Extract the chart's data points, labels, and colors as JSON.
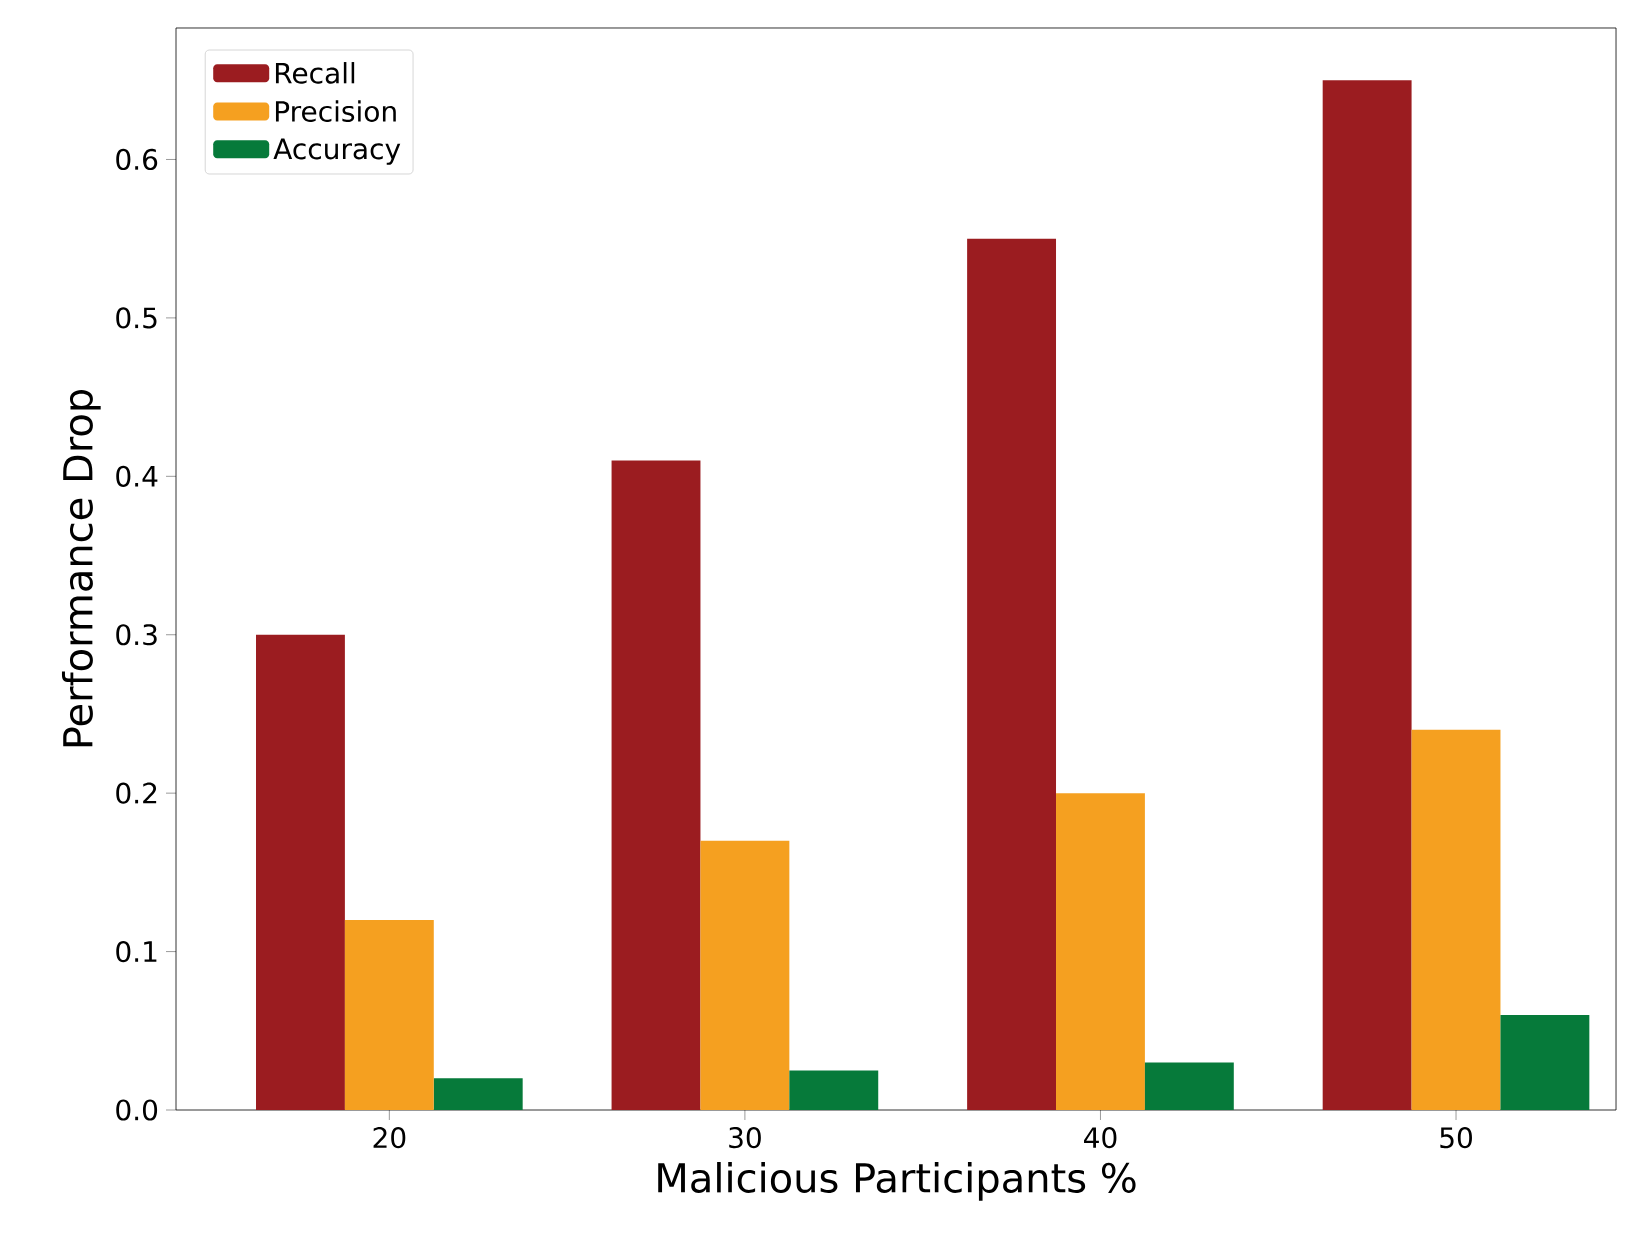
{
  "chart_data": {
    "type": "bar",
    "xlabel": "Malicious Participants %",
    "ylabel": "Performance Drop",
    "categories": [
      "20",
      "30",
      "40",
      "50"
    ],
    "series": [
      {
        "name": "Recall",
        "color": "#9b1c20",
        "values": [
          0.3,
          0.41,
          0.55,
          0.65
        ]
      },
      {
        "name": "Precision",
        "color": "#f5a020",
        "values": [
          0.12,
          0.17,
          0.2,
          0.24
        ]
      },
      {
        "name": "Accuracy",
        "color": "#067a3a",
        "values": [
          0.02,
          0.025,
          0.03,
          0.06
        ]
      }
    ],
    "ylim": [
      0,
      0.683
    ],
    "yticks": [
      {
        "value": 0,
        "label": "0.0"
      },
      0.1,
      0.2,
      0.3,
      0.4,
      0.5,
      0.6
    ],
    "legend": "top left",
    "grid": false
  }
}
